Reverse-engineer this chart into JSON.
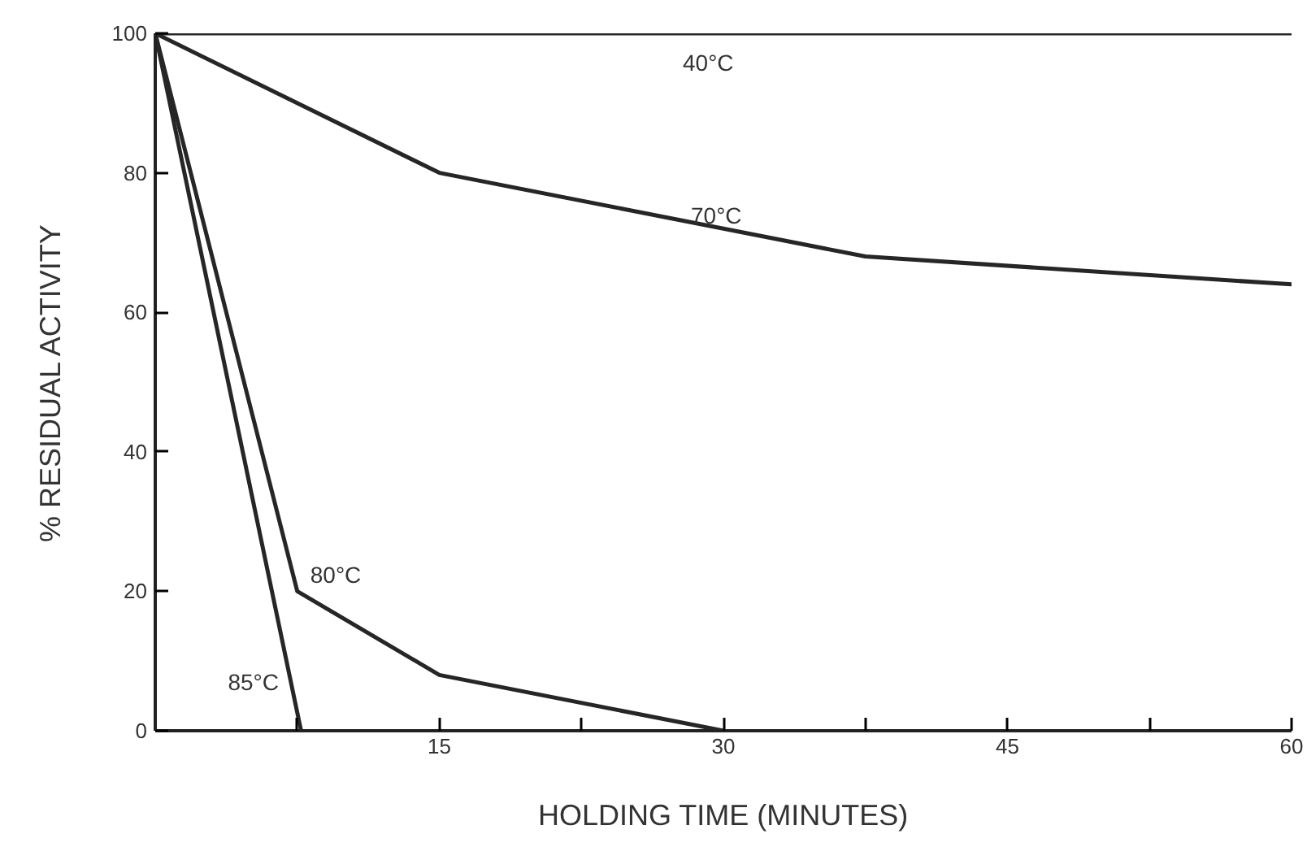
{
  "chart_data": {
    "type": "line",
    "xlabel": "HOLDING TIME (MINUTES)",
    "ylabel": "% RESIDUAL ACTIVITY",
    "xlim": [
      0,
      60
    ],
    "xticks": [
      {
        "value": 7.5,
        "label": null
      },
      15,
      {
        "value": 22.5,
        "label": null
      },
      30,
      {
        "value": 37.5,
        "label": null
      },
      45,
      {
        "value": 52.5,
        "label": null
      },
      60
    ],
    "ylim": [
      0,
      100
    ],
    "yticks": [
      0,
      20,
      40,
      60,
      80,
      100
    ],
    "grid": false,
    "marker": "none",
    "line_style": "solid",
    "series": [
      {
        "name": "40°C",
        "color": "#262626",
        "x": [
          0,
          60
        ],
        "values": [
          100,
          100
        ]
      },
      {
        "name": "70°C",
        "color": "#262626",
        "x": [
          0,
          15,
          30,
          37.5,
          60
        ],
        "values": [
          100,
          80,
          72,
          68,
          64
        ]
      },
      {
        "name": "80°C",
        "color": "#262626",
        "x": [
          0,
          7.5,
          15,
          30
        ],
        "values": [
          100,
          20,
          8,
          0
        ]
      },
      {
        "name": "85°C",
        "color": "#262626",
        "x": [
          0,
          7.7
        ],
        "values": [
          100,
          0
        ]
      }
    ]
  }
}
